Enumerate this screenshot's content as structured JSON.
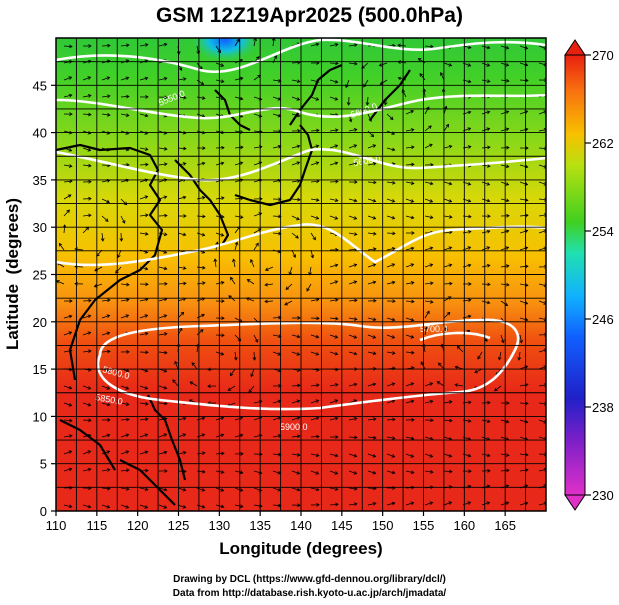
{
  "title": "GSM 12Z19Apr2025 (500.0hPa)",
  "x_axis": {
    "label": "Longitude (degrees)",
    "range": [
      110,
      170
    ],
    "ticks": [
      "110",
      "115",
      "120",
      "125",
      "130",
      "135",
      "140",
      "145",
      "150",
      "155",
      "160",
      "165"
    ]
  },
  "y_axis": {
    "label": "Latitude  (degrees)",
    "range": [
      0,
      50
    ],
    "ticks": [
      "0",
      "5",
      "10",
      "15",
      "20",
      "25",
      "30",
      "35",
      "40",
      "45"
    ]
  },
  "colorbar": {
    "ticks": [
      "230",
      "238",
      "246",
      "254",
      "262",
      "270"
    ],
    "range": [
      230,
      270
    ],
    "colors": [
      "#e030c8",
      "#2020c8",
      "#10a0ff",
      "#20e0a0",
      "#40d020",
      "#b8e010",
      "#f8c000",
      "#f87010",
      "#e82010"
    ]
  },
  "contour_labels": [
    "5550.0",
    "5600.0",
    "5600.0",
    "5700.0",
    "5800.0",
    "5850.0",
    "5900.0"
  ],
  "credits": {
    "line1": "Drawing by DCL (https://www.gfd-dennou.org/library/dcl/)",
    "line2": "Data from http://database.rish.kyoto-u.ac.jp/arch/jmadata/"
  }
}
